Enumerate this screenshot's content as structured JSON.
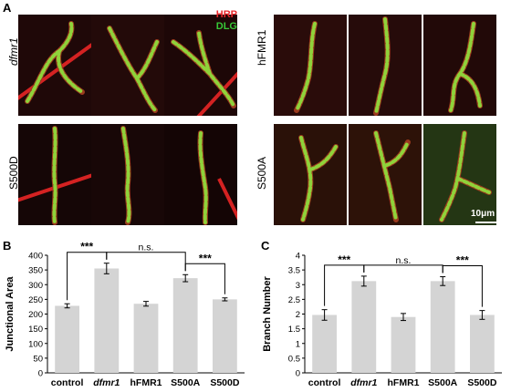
{
  "panels": {
    "A": {
      "letter": "A",
      "legend": {
        "hrp": "HRP",
        "dlg": "DLG",
        "hrp_color": "#e8262a",
        "dlg_color": "#37c837"
      },
      "row_labels": {
        "dfmr1": "dfmr1",
        "hFMR1": "hFMR1",
        "S500D": "S500D",
        "S500A": "S500A"
      },
      "scale_bar": "10μm"
    },
    "B": {
      "letter": "B"
    },
    "C": {
      "letter": "C"
    }
  },
  "chart_data": [
    {
      "type": "bar",
      "categories": [
        "control",
        "dfmr1",
        "hFMR1",
        "S500A",
        "S500D"
      ],
      "values": [
        228,
        355,
        235,
        322,
        250
      ],
      "errors": [
        7,
        18,
        8,
        12,
        5
      ],
      "ylabel": "Junctional Area",
      "ylim": [
        0,
        400
      ],
      "yticks": [
        0,
        50,
        100,
        150,
        200,
        250,
        300,
        350,
        400
      ],
      "bar_color": "#d4d4d4",
      "significance": [
        {
          "from": 0,
          "to": 1,
          "label": "***"
        },
        {
          "from": 1,
          "to": 3,
          "label": "n.s."
        },
        {
          "from": 3,
          "to": 4,
          "label": "***"
        }
      ]
    },
    {
      "type": "bar",
      "categories": [
        "control",
        "dfmr1",
        "hFMR1",
        "S500A",
        "S500D"
      ],
      "values": [
        1.97,
        3.12,
        1.9,
        3.12,
        1.97
      ],
      "errors": [
        0.18,
        0.17,
        0.12,
        0.15,
        0.15
      ],
      "ylabel": "Branch Number",
      "ylim": [
        0,
        4
      ],
      "yticks": [
        0,
        0.5,
        1,
        1.5,
        2,
        2.5,
        3,
        3.5,
        4
      ],
      "bar_color": "#d4d4d4",
      "significance": [
        {
          "from": 0,
          "to": 1,
          "label": "***"
        },
        {
          "from": 1,
          "to": 3,
          "label": "n.s."
        },
        {
          "from": 3,
          "to": 4,
          "label": "***"
        }
      ]
    }
  ]
}
